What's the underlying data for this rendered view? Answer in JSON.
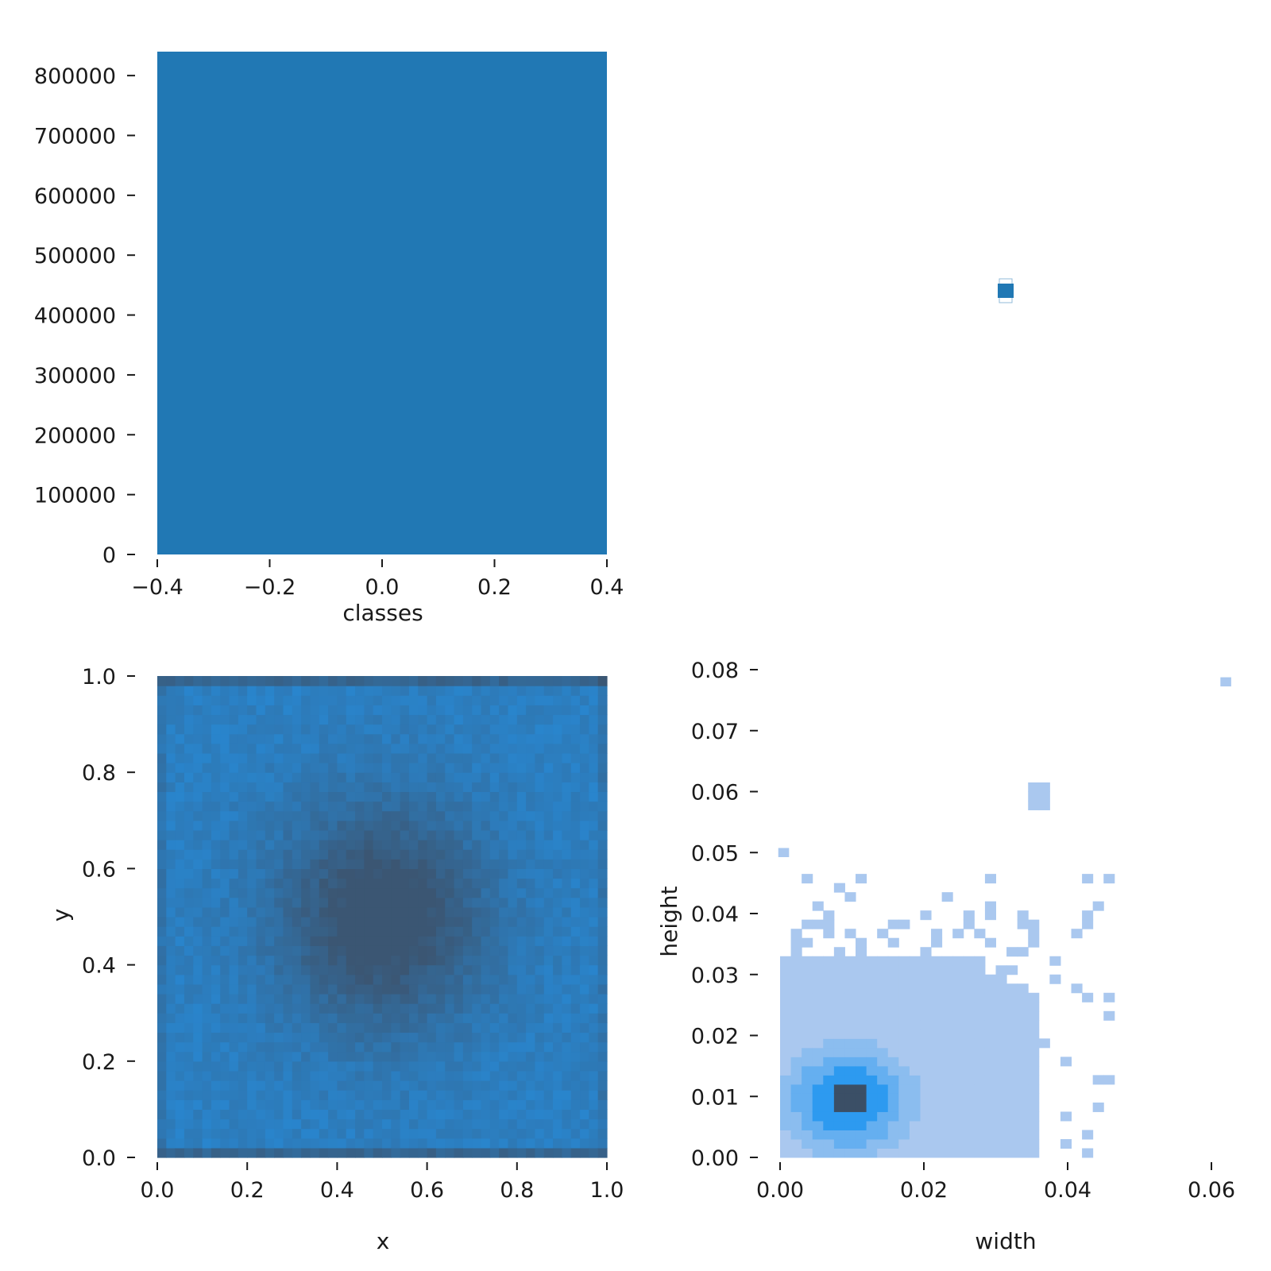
{
  "chart_data": [
    {
      "id": "classes-hist",
      "type": "bar",
      "xlabel": "classes",
      "ylabel": "",
      "x_range": [
        -0.4,
        0.4
      ],
      "y_range": [
        0,
        840000
      ],
      "bars": [
        {
          "x0": -0.4,
          "x1": 0.4,
          "value": 840000
        }
      ],
      "x_ticks": [
        "−0.4",
        "−0.2",
        "0.0",
        "0.2",
        "0.4"
      ],
      "x_tick_values": [
        -0.4,
        -0.2,
        0.0,
        0.2,
        0.4
      ],
      "y_ticks": [
        "0",
        "100000",
        "200000",
        "300000",
        "400000",
        "500000",
        "600000",
        "700000",
        "800000"
      ],
      "y_tick_values": [
        0,
        100000,
        200000,
        300000,
        400000,
        500000,
        600000,
        700000,
        800000
      ],
      "color": "#2178b4",
      "grid": false
    },
    {
      "id": "classes-marginal",
      "type": "scatter",
      "xlabel": "",
      "ylabel": "",
      "points": [
        {
          "x": 0,
          "y": 0
        }
      ],
      "color": "#2178b4"
    },
    {
      "id": "xy-heatmap",
      "type": "heatmap",
      "xlabel": "x",
      "ylabel": "y",
      "x_range": [
        0,
        1
      ],
      "y_range": [
        0,
        1
      ],
      "bins": 50,
      "density_peak": [
        0.5,
        0.5
      ],
      "x_ticks": [
        "0.0",
        "0.2",
        "0.4",
        "0.6",
        "0.8",
        "1.0"
      ],
      "x_tick_values": [
        0,
        0.2,
        0.4,
        0.6,
        0.8,
        1.0
      ],
      "y_ticks": [
        "0.0",
        "0.2",
        "0.4",
        "0.6",
        "0.8",
        "1.0"
      ],
      "y_tick_values": [
        0,
        0.2,
        0.4,
        0.6,
        0.8,
        1.0
      ],
      "low_color": "#258fe0",
      "high_color": "#3b5673",
      "grid": false
    },
    {
      "id": "wh-heatmap",
      "type": "heatmap",
      "xlabel": "width",
      "ylabel": "height",
      "x_range": [
        0.0,
        0.06
      ],
      "y_range": [
        0.0,
        0.08
      ],
      "bin_size": [
        0.0015,
        0.0015
      ],
      "density_peak": [
        0.0095,
        0.0095
      ],
      "outlier_points": [
        [
          0.062,
          0.078
        ],
        [
          0.0005,
          0.05
        ]
      ],
      "x_ticks": [
        "0.00",
        "0.02",
        "0.04",
        "0.06"
      ],
      "x_tick_values": [
        0.0,
        0.02,
        0.04,
        0.06
      ],
      "y_ticks": [
        "0.00",
        "0.01",
        "0.02",
        "0.03",
        "0.04",
        "0.05",
        "0.06",
        "0.07",
        "0.08"
      ],
      "y_tick_values": [
        0.0,
        0.01,
        0.02,
        0.03,
        0.04,
        0.05,
        0.06,
        0.07,
        0.08
      ],
      "light_color": "#aac8ef",
      "mid_color": "#2d9af0",
      "high_color": "#3b4f66",
      "grid": false
    }
  ]
}
